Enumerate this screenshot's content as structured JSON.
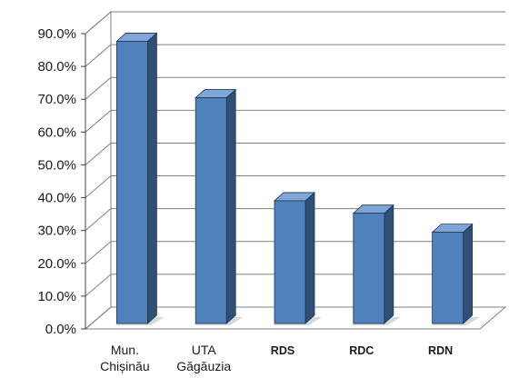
{
  "chart_data": {
    "type": "bar",
    "style": "3d-column",
    "title": "",
    "xlabel": "",
    "ylabel": "",
    "categories": [
      "Mun. Chișinău",
      "UTA Găgăuzia",
      "RDS",
      "RDC",
      "RDN"
    ],
    "category_label_lines": [
      [
        "Mun.",
        "Chișinău"
      ],
      [
        "UTA",
        "Găgăuzia"
      ],
      [
        "RDS"
      ],
      [
        "RDC"
      ],
      [
        "RDN"
      ]
    ],
    "category_label_bold": [
      false,
      false,
      true,
      true,
      true
    ],
    "values": [
      86.0,
      68.8,
      37.4,
      33.6,
      27.8
    ],
    "value_format": "percent-1dp",
    "ylim": [
      0,
      90
    ],
    "yticks": [
      0,
      10,
      20,
      30,
      40,
      50,
      60,
      70,
      80,
      90
    ],
    "ytick_labels": [
      "0.0%",
      "10.0%",
      "20.0%",
      "30.0%",
      "40.0%",
      "50.0%",
      "60.0%",
      "70.0%",
      "80.0%",
      "90.0%"
    ],
    "grid": true,
    "legend": "none",
    "colors": {
      "bar_front": "#4f81bd",
      "bar_top": "#7fa6d6",
      "bar_side": "#2f4f75",
      "grid": "#808080",
      "floor": "#c8c8c8"
    }
  }
}
